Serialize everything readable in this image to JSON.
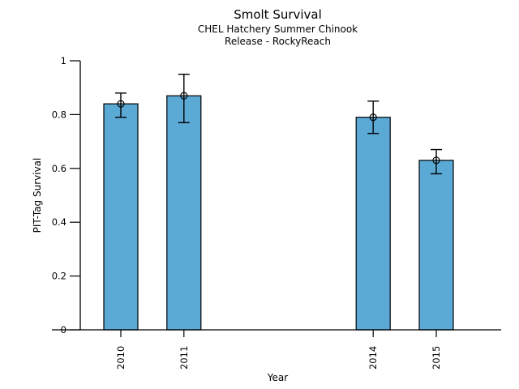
{
  "header": {
    "title": "Smolt Survival",
    "subtitle1": "CHEL Hatchery Summer Chinook",
    "subtitle2": "Release - RockyReach"
  },
  "chart_data": {
    "type": "bar",
    "title": "Smolt Survival",
    "subtitle": [
      "CHEL Hatchery Summer Chinook",
      "Release - RockyReach"
    ],
    "xlabel": "Year",
    "ylabel": "PIT-Tag Survival",
    "categories": [
      "2010",
      "2011",
      "2014",
      "2015"
    ],
    "x_years": [
      2010,
      2011,
      2014,
      2015
    ],
    "values": [
      0.84,
      0.87,
      0.79,
      0.63
    ],
    "error_low": [
      0.79,
      0.77,
      0.73,
      0.58
    ],
    "error_high": [
      0.88,
      0.95,
      0.85,
      0.67
    ],
    "missing_years": [
      2012,
      2013
    ],
    "ylim": [
      0,
      1
    ],
    "yticks": [
      0,
      0.2,
      0.4,
      0.6,
      0.8,
      1
    ],
    "ytick_labels": [
      "0",
      "0.2",
      "0.4",
      "0.6",
      "0.8",
      "1"
    ],
    "grid": false,
    "legend": null,
    "bar_color": "#5BAAD6",
    "bar_edge_color": "#000000",
    "error_color": "#000000",
    "marker": "open-circle"
  }
}
